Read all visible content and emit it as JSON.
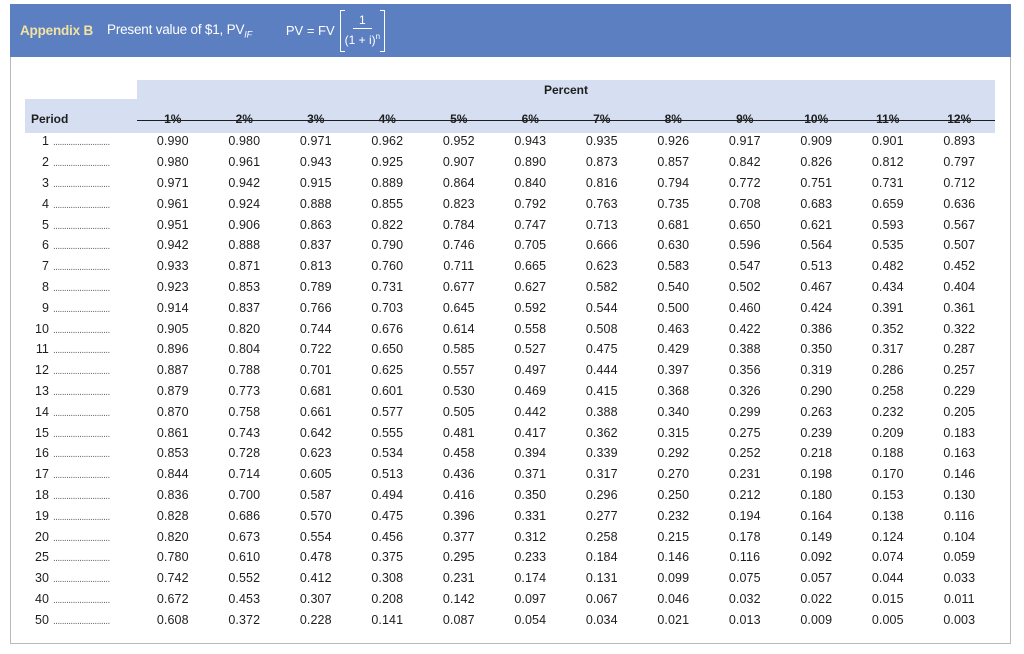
{
  "header": {
    "appendix": "Appendix B",
    "title": "Present value of $1, PV",
    "title_sub": "IF",
    "formula_lhs": "PV = FV",
    "formula_num": "1",
    "formula_den": "(1 + i)",
    "formula_exp": "n"
  },
  "table": {
    "percent_label": "Percent",
    "period_label": "Period",
    "dots": "..........................",
    "columns": [
      "1%",
      "2%",
      "3%",
      "4%",
      "5%",
      "6%",
      "7%",
      "8%",
      "9%",
      "10%",
      "11%",
      "12%"
    ],
    "rows": [
      {
        "period": "1",
        "values": [
          "0.990",
          "0.980",
          "0.971",
          "0.962",
          "0.952",
          "0.943",
          "0.935",
          "0.926",
          "0.917",
          "0.909",
          "0.901",
          "0.893"
        ]
      },
      {
        "period": "2",
        "values": [
          "0.980",
          "0.961",
          "0.943",
          "0.925",
          "0.907",
          "0.890",
          "0.873",
          "0.857",
          "0.842",
          "0.826",
          "0.812",
          "0.797"
        ]
      },
      {
        "period": "3",
        "values": [
          "0.971",
          "0.942",
          "0.915",
          "0.889",
          "0.864",
          "0.840",
          "0.816",
          "0.794",
          "0.772",
          "0.751",
          "0.731",
          "0.712"
        ]
      },
      {
        "period": "4",
        "values": [
          "0.961",
          "0.924",
          "0.888",
          "0.855",
          "0.823",
          "0.792",
          "0.763",
          "0.735",
          "0.708",
          "0.683",
          "0.659",
          "0.636"
        ]
      },
      {
        "period": "5",
        "values": [
          "0.951",
          "0.906",
          "0.863",
          "0.822",
          "0.784",
          "0.747",
          "0.713",
          "0.681",
          "0.650",
          "0.621",
          "0.593",
          "0.567"
        ]
      },
      {
        "period": "6",
        "values": [
          "0.942",
          "0.888",
          "0.837",
          "0.790",
          "0.746",
          "0.705",
          "0.666",
          "0.630",
          "0.596",
          "0.564",
          "0.535",
          "0.507"
        ]
      },
      {
        "period": "7",
        "values": [
          "0.933",
          "0.871",
          "0.813",
          "0.760",
          "0.711",
          "0.665",
          "0.623",
          "0.583",
          "0.547",
          "0.513",
          "0.482",
          "0.452"
        ]
      },
      {
        "period": "8",
        "values": [
          "0.923",
          "0.853",
          "0.789",
          "0.731",
          "0.677",
          "0.627",
          "0.582",
          "0.540",
          "0.502",
          "0.467",
          "0.434",
          "0.404"
        ]
      },
      {
        "period": "9",
        "values": [
          "0.914",
          "0.837",
          "0.766",
          "0.703",
          "0.645",
          "0.592",
          "0.544",
          "0.500",
          "0.460",
          "0.424",
          "0.391",
          "0.361"
        ]
      },
      {
        "period": "10",
        "values": [
          "0.905",
          "0.820",
          "0.744",
          "0.676",
          "0.614",
          "0.558",
          "0.508",
          "0.463",
          "0.422",
          "0.386",
          "0.352",
          "0.322"
        ]
      },
      {
        "period": "11",
        "values": [
          "0.896",
          "0.804",
          "0.722",
          "0.650",
          "0.585",
          "0.527",
          "0.475",
          "0.429",
          "0.388",
          "0.350",
          "0.317",
          "0.287"
        ]
      },
      {
        "period": "12",
        "values": [
          "0.887",
          "0.788",
          "0.701",
          "0.625",
          "0.557",
          "0.497",
          "0.444",
          "0.397",
          "0.356",
          "0.319",
          "0.286",
          "0.257"
        ]
      },
      {
        "period": "13",
        "values": [
          "0.879",
          "0.773",
          "0.681",
          "0.601",
          "0.530",
          "0.469",
          "0.415",
          "0.368",
          "0.326",
          "0.290",
          "0.258",
          "0.229"
        ]
      },
      {
        "period": "14",
        "values": [
          "0.870",
          "0.758",
          "0.661",
          "0.577",
          "0.505",
          "0.442",
          "0.388",
          "0.340",
          "0.299",
          "0.263",
          "0.232",
          "0.205"
        ]
      },
      {
        "period": "15",
        "values": [
          "0.861",
          "0.743",
          "0.642",
          "0.555",
          "0.481",
          "0.417",
          "0.362",
          "0.315",
          "0.275",
          "0.239",
          "0.209",
          "0.183"
        ]
      },
      {
        "period": "16",
        "values": [
          "0.853",
          "0.728",
          "0.623",
          "0.534",
          "0.458",
          "0.394",
          "0.339",
          "0.292",
          "0.252",
          "0.218",
          "0.188",
          "0.163"
        ]
      },
      {
        "period": "17",
        "values": [
          "0.844",
          "0.714",
          "0.605",
          "0.513",
          "0.436",
          "0.371",
          "0.317",
          "0.270",
          "0.231",
          "0.198",
          "0.170",
          "0.146"
        ]
      },
      {
        "period": "18",
        "values": [
          "0.836",
          "0.700",
          "0.587",
          "0.494",
          "0.416",
          "0.350",
          "0.296",
          "0.250",
          "0.212",
          "0.180",
          "0.153",
          "0.130"
        ]
      },
      {
        "period": "19",
        "values": [
          "0.828",
          "0.686",
          "0.570",
          "0.475",
          "0.396",
          "0.331",
          "0.277",
          "0.232",
          "0.194",
          "0.164",
          "0.138",
          "0.116"
        ]
      },
      {
        "period": "20",
        "values": [
          "0.820",
          "0.673",
          "0.554",
          "0.456",
          "0.377",
          "0.312",
          "0.258",
          "0.215",
          "0.178",
          "0.149",
          "0.124",
          "0.104"
        ]
      },
      {
        "period": "25",
        "values": [
          "0.780",
          "0.610",
          "0.478",
          "0.375",
          "0.295",
          "0.233",
          "0.184",
          "0.146",
          "0.116",
          "0.092",
          "0.074",
          "0.059"
        ]
      },
      {
        "period": "30",
        "values": [
          "0.742",
          "0.552",
          "0.412",
          "0.308",
          "0.231",
          "0.174",
          "0.131",
          "0.099",
          "0.075",
          "0.057",
          "0.044",
          "0.033"
        ]
      },
      {
        "period": "40",
        "values": [
          "0.672",
          "0.453",
          "0.307",
          "0.208",
          "0.142",
          "0.097",
          "0.067",
          "0.046",
          "0.032",
          "0.022",
          "0.015",
          "0.011"
        ]
      },
      {
        "period": "50",
        "values": [
          "0.608",
          "0.372",
          "0.228",
          "0.141",
          "0.087",
          "0.054",
          "0.034",
          "0.021",
          "0.013",
          "0.009",
          "0.005",
          "0.003"
        ]
      }
    ]
  }
}
